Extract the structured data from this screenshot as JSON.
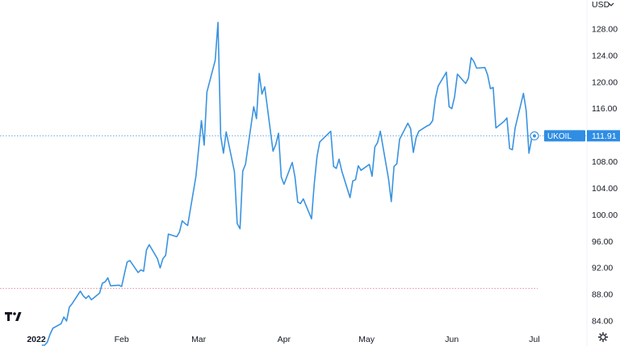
{
  "currency_menu": "USD",
  "currency_chevron_icon": "chevron-down-icon",
  "settings_icon": "gear-icon",
  "logo_icon": "tradingview-logo",
  "colors": {
    "series": "#3a93e0",
    "label_bg": "#2f8de4",
    "dotted_line": "#6aa8e8",
    "baseline_dotted": "#e58a9a",
    "axis_text": "#131722"
  },
  "chart_data": {
    "type": "line",
    "title": "",
    "xlabel": "",
    "ylabel": "",
    "ylim": [
      82,
      130
    ],
    "y_ticks": [
      84,
      88,
      92,
      96,
      100,
      104,
      108,
      112,
      116,
      120,
      124,
      128
    ],
    "y_tick_labels": [
      "84.00",
      "88.00",
      "92.00",
      "96.00",
      "100.00",
      "104.00",
      "108.00",
      "112.00",
      "116.00",
      "120.00",
      "124.00",
      "128.00"
    ],
    "x_tick_labels": [
      {
        "label": "2022",
        "date": "2022-01-01",
        "bold": true
      },
      {
        "label": "Feb",
        "date": "2022-02-01",
        "bold": false
      },
      {
        "label": "Mar",
        "date": "2022-03-01",
        "bold": false
      },
      {
        "label": "Apr",
        "date": "2022-04-01",
        "bold": false
      },
      {
        "label": "May",
        "date": "2022-05-01",
        "bold": false
      },
      {
        "label": "Jun",
        "date": "2022-06-01",
        "bold": false
      },
      {
        "label": "Jul",
        "date": "2022-07-01",
        "bold": false
      }
    ],
    "x_range": [
      "2021-12-25",
      "2022-07-14"
    ],
    "grid": false,
    "series": [
      {
        "name": "UKOIL",
        "last_value": 111.91,
        "last_value_label": "111.91",
        "points": [
          [
            "2022-01-03",
            78.9
          ],
          [
            "2022-01-04",
            80.0
          ],
          [
            "2022-01-05",
            80.8
          ],
          [
            "2022-01-06",
            82.0
          ],
          [
            "2022-01-07",
            82.9
          ],
          [
            "2022-01-10",
            83.6
          ],
          [
            "2022-01-11",
            84.6
          ],
          [
            "2022-01-12",
            84.0
          ],
          [
            "2022-01-13",
            86.1
          ],
          [
            "2022-01-14",
            86.6
          ],
          [
            "2022-01-17",
            88.5
          ],
          [
            "2022-01-18",
            87.8
          ],
          [
            "2022-01-19",
            87.4
          ],
          [
            "2022-01-20",
            87.8
          ],
          [
            "2022-01-21",
            87.2
          ],
          [
            "2022-01-24",
            88.2
          ],
          [
            "2022-01-25",
            89.7
          ],
          [
            "2022-01-26",
            89.9
          ],
          [
            "2022-01-27",
            90.5
          ],
          [
            "2022-01-28",
            89.3
          ],
          [
            "2022-01-31",
            89.4
          ],
          [
            "2022-02-01",
            89.2
          ],
          [
            "2022-02-02",
            91.1
          ],
          [
            "2022-02-03",
            92.9
          ],
          [
            "2022-02-04",
            93.1
          ],
          [
            "2022-02-07",
            91.3
          ],
          [
            "2022-02-08",
            91.7
          ],
          [
            "2022-02-09",
            91.5
          ],
          [
            "2022-02-10",
            94.7
          ],
          [
            "2022-02-11",
            95.5
          ],
          [
            "2022-02-14",
            93.4
          ],
          [
            "2022-02-15",
            92.0
          ],
          [
            "2022-02-16",
            93.4
          ],
          [
            "2022-02-17",
            93.9
          ],
          [
            "2022-02-18",
            97.1
          ],
          [
            "2022-02-21",
            96.7
          ],
          [
            "2022-02-22",
            97.4
          ],
          [
            "2022-02-23",
            99.1
          ],
          [
            "2022-02-24",
            98.7
          ],
          [
            "2022-02-25",
            98.4
          ],
          [
            "2022-02-28",
            105.8
          ],
          [
            "2022-03-01",
            110.0
          ],
          [
            "2022-03-02",
            114.2
          ],
          [
            "2022-03-03",
            110.5
          ],
          [
            "2022-03-04",
            118.5
          ],
          [
            "2022-03-07",
            123.3
          ],
          [
            "2022-03-08",
            129.0
          ],
          [
            "2022-03-09",
            111.9
          ],
          [
            "2022-03-10",
            109.3
          ],
          [
            "2022-03-11",
            112.5
          ],
          [
            "2022-03-14",
            106.5
          ],
          [
            "2022-03-15",
            98.7
          ],
          [
            "2022-03-16",
            97.9
          ],
          [
            "2022-03-17",
            106.6
          ],
          [
            "2022-03-18",
            107.6
          ],
          [
            "2022-03-21",
            116.3
          ],
          [
            "2022-03-22",
            114.5
          ],
          [
            "2022-03-23",
            121.3
          ],
          [
            "2022-03-24",
            118.2
          ],
          [
            "2022-03-25",
            119.3
          ],
          [
            "2022-03-28",
            109.6
          ],
          [
            "2022-03-29",
            110.6
          ],
          [
            "2022-03-30",
            112.3
          ],
          [
            "2022-03-31",
            105.7
          ],
          [
            "2022-04-01",
            104.6
          ],
          [
            "2022-04-04",
            107.9
          ],
          [
            "2022-04-05",
            105.7
          ],
          [
            "2022-04-06",
            101.9
          ],
          [
            "2022-04-07",
            101.7
          ],
          [
            "2022-04-08",
            102.4
          ],
          [
            "2022-04-11",
            99.4
          ],
          [
            "2022-04-12",
            104.7
          ],
          [
            "2022-04-13",
            108.8
          ],
          [
            "2022-04-14",
            111.0
          ],
          [
            "2022-04-18",
            112.6
          ],
          [
            "2022-04-19",
            107.3
          ],
          [
            "2022-04-20",
            107.0
          ],
          [
            "2022-04-21",
            108.4
          ],
          [
            "2022-04-22",
            106.6
          ],
          [
            "2022-04-25",
            102.6
          ],
          [
            "2022-04-26",
            105.1
          ],
          [
            "2022-04-27",
            105.3
          ],
          [
            "2022-04-28",
            107.4
          ],
          [
            "2022-04-29",
            106.7
          ],
          [
            "2022-05-02",
            107.6
          ],
          [
            "2022-05-03",
            105.8
          ],
          [
            "2022-05-04",
            110.2
          ],
          [
            "2022-05-05",
            110.9
          ],
          [
            "2022-05-06",
            112.6
          ],
          [
            "2022-05-09",
            105.4
          ],
          [
            "2022-05-10",
            102.0
          ],
          [
            "2022-05-11",
            107.3
          ],
          [
            "2022-05-12",
            107.7
          ],
          [
            "2022-05-13",
            111.4
          ],
          [
            "2022-05-16",
            113.8
          ],
          [
            "2022-05-17",
            113.0
          ],
          [
            "2022-05-18",
            109.4
          ],
          [
            "2022-05-19",
            111.6
          ],
          [
            "2022-05-20",
            112.6
          ],
          [
            "2022-05-23",
            113.4
          ],
          [
            "2022-05-24",
            113.6
          ],
          [
            "2022-05-25",
            114.2
          ],
          [
            "2022-05-26",
            117.5
          ],
          [
            "2022-05-27",
            119.4
          ],
          [
            "2022-05-30",
            121.5
          ],
          [
            "2022-05-31",
            116.3
          ],
          [
            "2022-06-01",
            116.0
          ],
          [
            "2022-06-02",
            117.8
          ],
          [
            "2022-06-03",
            121.2
          ],
          [
            "2022-06-06",
            119.8
          ],
          [
            "2022-06-07",
            120.6
          ],
          [
            "2022-06-08",
            123.7
          ],
          [
            "2022-06-09",
            123.1
          ],
          [
            "2022-06-10",
            122.1
          ],
          [
            "2022-06-13",
            122.2
          ],
          [
            "2022-06-14",
            121.1
          ],
          [
            "2022-06-15",
            119.0
          ],
          [
            "2022-06-16",
            119.2
          ],
          [
            "2022-06-17",
            113.1
          ],
          [
            "2022-06-20",
            114.1
          ],
          [
            "2022-06-21",
            114.6
          ],
          [
            "2022-06-22",
            110.0
          ],
          [
            "2022-06-23",
            109.8
          ],
          [
            "2022-06-24",
            113.1
          ],
          [
            "2022-06-27",
            118.3
          ],
          [
            "2022-06-28",
            115.7
          ],
          [
            "2022-06-29",
            109.3
          ],
          [
            "2022-06-30",
            111.5
          ],
          [
            "2022-07-01",
            111.9
          ]
        ]
      }
    ],
    "reference_lines": [
      {
        "value": 111.91,
        "style": "dotted",
        "color": "#6aa8e8"
      },
      {
        "value": 88.9,
        "style": "dotted",
        "color": "#e58a9a"
      }
    ]
  }
}
